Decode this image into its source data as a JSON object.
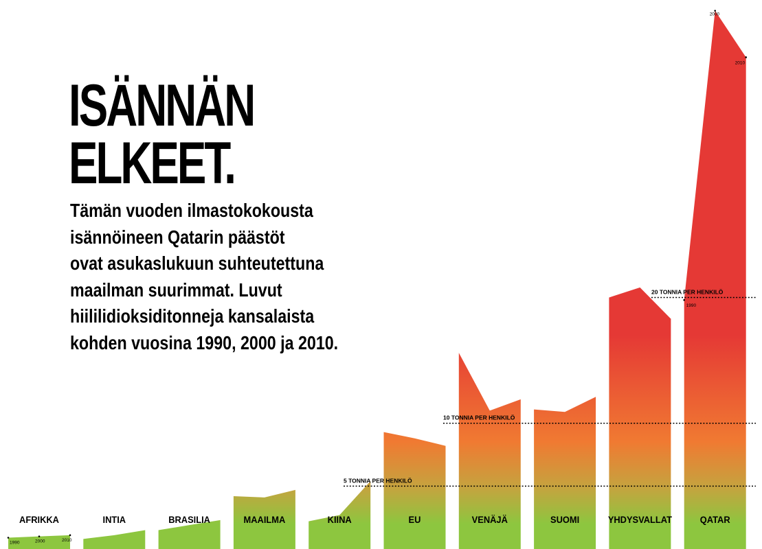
{
  "header": {
    "title_lines": [
      "ISÄNNÄN",
      "ELKEET."
    ],
    "subtitle_lines": [
      "Tämän vuoden ilmastokokousta",
      "isännöineen Qatarin päästöt",
      "ovat asukaslukuun suhteutettuna",
      "maailman suurimmat. Luvut",
      "hiililidioksiditonneja kansalaista",
      "kohden vuosina 1990, 2000 ja 2010."
    ]
  },
  "colors": {
    "low": "#8dc63f",
    "mid": "#c4a43f",
    "orange": "#f07a32",
    "high": "#e53935",
    "text": "#000000"
  },
  "chart_data": {
    "type": "area",
    "unit": "hiilidioksiditonnia per henkilö",
    "x": [
      "1990",
      "2000",
      "2010"
    ],
    "categories": [
      "AFRIKKA",
      "INTIA",
      "BRASILIA",
      "MAAILMA",
      "KIINA",
      "EU",
      "VENÄJÄ",
      "SUOMI",
      "YHDYSVALLAT",
      "QATAR"
    ],
    "series": [
      {
        "name": "AFRIKKA",
        "values": [
          0.9,
          1.0,
          1.1
        ]
      },
      {
        "name": "INTIA",
        "values": [
          0.8,
          1.1,
          1.5
        ]
      },
      {
        "name": "BRASILIA",
        "values": [
          1.5,
          1.9,
          2.3
        ]
      },
      {
        "name": "MAAILMA",
        "values": [
          4.2,
          4.1,
          4.7
        ]
      },
      {
        "name": "KIINA",
        "values": [
          2.2,
          2.7,
          5.4
        ]
      },
      {
        "name": "EU",
        "values": [
          9.3,
          8.8,
          8.2
        ]
      },
      {
        "name": "VENÄJÄ",
        "values": [
          15.6,
          11.0,
          11.9
        ]
      },
      {
        "name": "SUOMI",
        "values": [
          11.1,
          10.9,
          12.1
        ]
      },
      {
        "name": "YHDYSVALLAT",
        "values": [
          20.0,
          20.8,
          18.3
        ]
      },
      {
        "name": "QATAR",
        "values": [
          19.8,
          42.8,
          39.1
        ]
      }
    ],
    "reference_lines": [
      {
        "label": "5 TONNIA PER HENKILÖ",
        "value": 5
      },
      {
        "label": "10 TONNIA PER HENKILÖ",
        "value": 10
      },
      {
        "label": "20 TONNIA PER HENKILÖ",
        "value": 20
      }
    ],
    "year_labels": [
      "1990",
      "2000",
      "2010"
    ],
    "ylim": [
      0,
      43
    ]
  }
}
